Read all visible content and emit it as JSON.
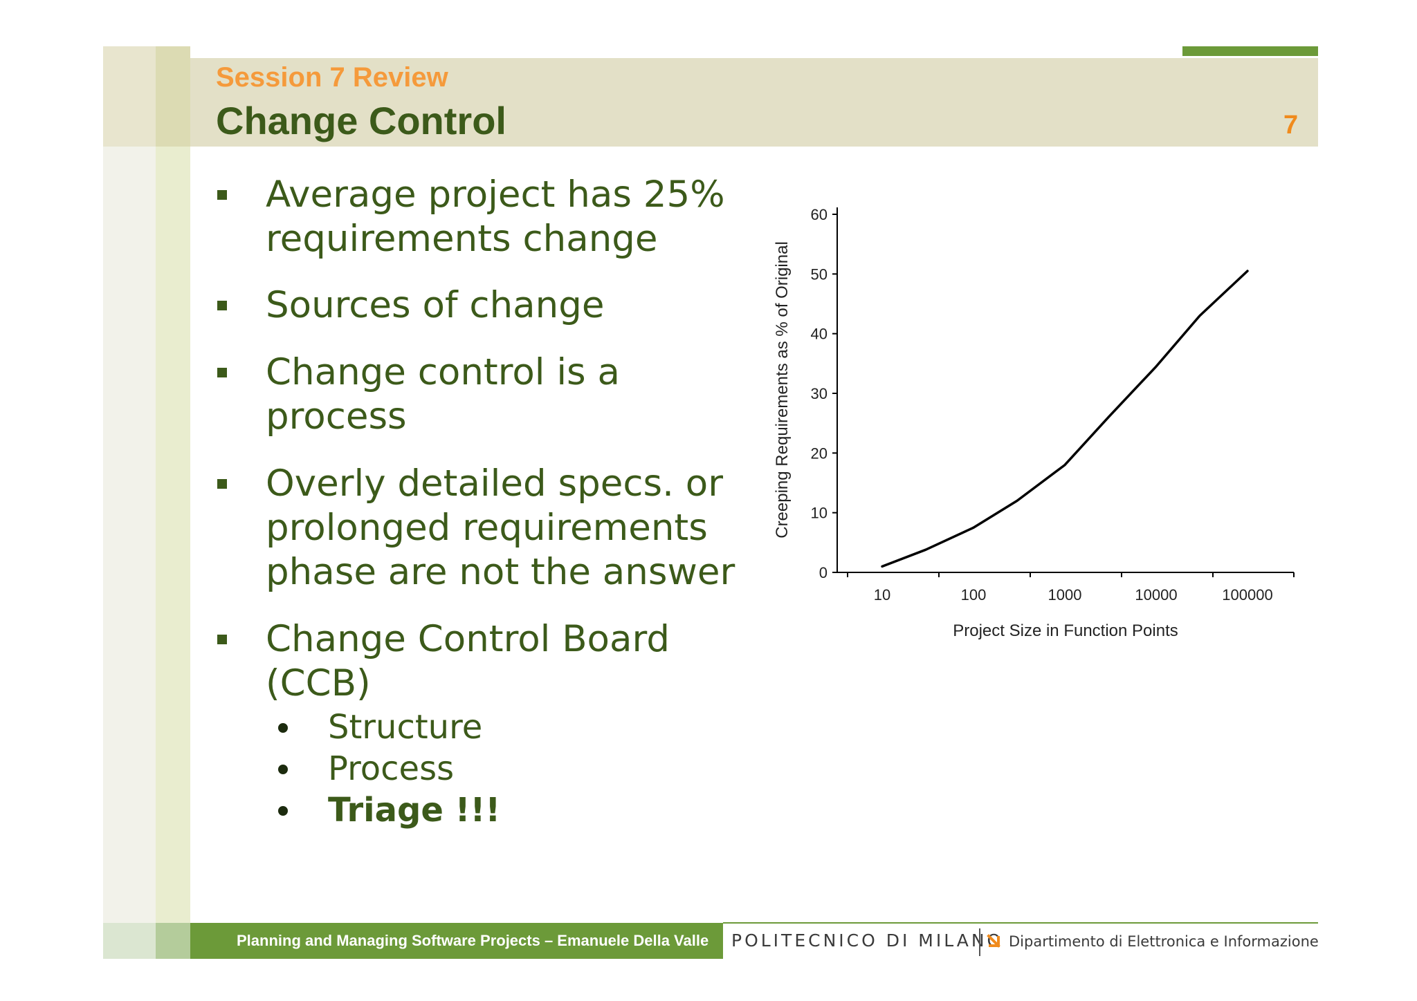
{
  "header": {
    "session": "Session 7 Review",
    "title": "Change Control",
    "slide_number": "7"
  },
  "bullets": [
    {
      "lines": [
        "Average project has 25%",
        "requirements change"
      ]
    },
    {
      "lines": [
        "Sources of change"
      ]
    },
    {
      "lines": [
        "Change control is a",
        "process"
      ]
    },
    {
      "lines": [
        "Overly detailed specs. or",
        "prolonged requirements",
        "phase are not the answer"
      ]
    },
    {
      "lines": [
        "Change Control Board",
        "(CCB)"
      ],
      "sub": [
        "Structure",
        "Process",
        "Triage !!!"
      ]
    }
  ],
  "chart_data": {
    "type": "line",
    "xlabel": "Project Size in Function Points",
    "ylabel": "Creeping Requirements as % of Original",
    "x_scale": "log",
    "x_ticks": [
      "10",
      "100",
      "1000",
      "10000",
      "100000"
    ],
    "y_ticks": [
      "0",
      "10",
      "20",
      "30",
      "40",
      "50",
      "60"
    ],
    "ylim": [
      0,
      60
    ],
    "grid": false,
    "series": [
      {
        "x": [
          10,
          30,
          100,
          300,
          1000,
          3000,
          10000,
          30000,
          100000
        ],
        "values": [
          1,
          3.8,
          7.5,
          12,
          18,
          26,
          34.5,
          43,
          50.5
        ]
      }
    ]
  },
  "footer": {
    "course": "Planning and Managing Software Projects – Emanuele Della Valle",
    "institution": "POLITECNICO DI MILANO",
    "department": "Dipartimento di Elettronica e Informazione"
  },
  "colors": {
    "accent_green": "#6c9a39",
    "dark_green": "#3c5a1a",
    "orange": "#f59a3b"
  }
}
